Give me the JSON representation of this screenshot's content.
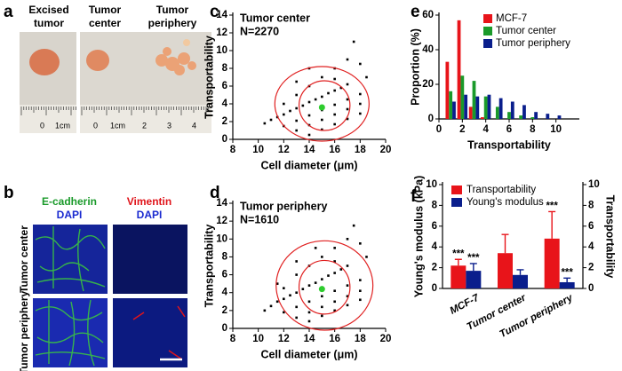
{
  "panel_labels": [
    "a",
    "b",
    "c",
    "d",
    "e",
    "f"
  ],
  "photo_a": {
    "labels": [
      [
        "Excised",
        "tumor"
      ],
      [
        "Tumor",
        "center"
      ],
      [
        "Tumor",
        "periphery"
      ]
    ],
    "ruler_labels": [
      "0",
      "1cm",
      "0",
      "1cm",
      "2",
      "3",
      "4"
    ]
  },
  "photo_b": {
    "column_labels": [
      [
        "E-cadherin",
        "DAPI"
      ],
      [
        "Vimentin",
        "DAPI"
      ]
    ],
    "row_labels": [
      "Tumor center",
      "Tumor periphery"
    ]
  },
  "chart_data": [
    {
      "type": "scatter",
      "annotation": [
        "Tumor center",
        "N=2270"
      ],
      "x": [
        10.5,
        11,
        11.5,
        12,
        12.5,
        13,
        13.5,
        14,
        14.5,
        15,
        15.5,
        16,
        16.5,
        17,
        12,
        13,
        14,
        15,
        16,
        17,
        18,
        13,
        14,
        15,
        16,
        17,
        18,
        14,
        15,
        16,
        17,
        18,
        12,
        13,
        14,
        15,
        16,
        17,
        17.5,
        16,
        18.5,
        18,
        14,
        13
      ],
      "y": [
        1.8,
        2.2,
        2.5,
        2.8,
        3.2,
        3.5,
        3.8,
        4.2,
        4.5,
        4.8,
        5.2,
        5.5,
        5.8,
        6.2,
        1.5,
        2.1,
        2.7,
        3.3,
        3.9,
        4.5,
        5.1,
        1,
        1.6,
        2.2,
        2.8,
        3.4,
        4,
        0.5,
        1.1,
        1.7,
        2.3,
        2.9,
        4,
        5,
        6,
        7,
        8,
        9,
        11,
        6.8,
        7,
        8.5,
        8,
        6.5
      ],
      "color": "#000000",
      "centroid": {
        "x": 15,
        "y": 3.6,
        "color": "#2ecc2e"
      },
      "ellipses": [
        {
          "cx": 15,
          "cy": 4,
          "rx": 3.7,
          "ry": 4.2
        },
        {
          "cx": 15.2,
          "cy": 3.8,
          "rx": 2,
          "ry": 2.8
        }
      ],
      "ellipse_color": "#e02020",
      "xlim": [
        8,
        20
      ],
      "xticks": [
        8,
        10,
        12,
        14,
        16,
        18,
        20
      ],
      "ylim": [
        0,
        14
      ],
      "yticks": [
        0,
        2,
        4,
        6,
        8,
        10,
        12,
        14
      ],
      "xlabel": "Cell diameter (μm)",
      "ylabel": "Transportability"
    },
    {
      "type": "scatter",
      "annotation": [
        "Tumor periphery",
        "N=1610"
      ],
      "x": [
        10.5,
        11,
        11.5,
        12,
        12.5,
        13,
        13.5,
        14,
        14.5,
        15,
        15.5,
        16,
        16.5,
        17,
        12,
        13,
        14,
        15,
        16,
        17,
        18,
        13,
        14,
        15,
        16,
        17,
        18,
        14,
        15,
        16,
        17,
        18,
        12,
        13,
        14,
        15,
        16,
        17,
        17.5,
        16,
        18.5,
        18,
        14.5,
        13,
        11.5
      ],
      "y": [
        2,
        2.5,
        3,
        3.3,
        3.7,
        4,
        4.4,
        4.8,
        5.1,
        5.5,
        5.9,
        6.2,
        6.6,
        7,
        1.8,
        2.4,
        3,
        3.6,
        4.2,
        4.8,
        5.4,
        1.2,
        1.8,
        2.4,
        3,
        3.6,
        4.2,
        0.8,
        1.4,
        2,
        2.6,
        3.2,
        4.5,
        6,
        7,
        8,
        9,
        10,
        11.5,
        7.5,
        8,
        9.5,
        9,
        7.5,
        5
      ],
      "color": "#000000",
      "centroid": {
        "x": 15,
        "y": 4.4,
        "color": "#2ecc2e"
      },
      "ellipses": [
        {
          "cx": 15.2,
          "cy": 4.8,
          "rx": 3.8,
          "ry": 5
        },
        {
          "cx": 15.2,
          "cy": 4.6,
          "rx": 2,
          "ry": 3
        }
      ],
      "ellipse_color": "#e02020",
      "xlim": [
        8,
        20
      ],
      "xticks": [
        8,
        10,
        12,
        14,
        16,
        18,
        20
      ],
      "ylim": [
        0,
        14
      ],
      "yticks": [
        0,
        2,
        4,
        6,
        8,
        10,
        12,
        14
      ],
      "xlabel": "Cell diameter (μm)",
      "ylabel": "Transportability"
    },
    {
      "type": "bar",
      "x": [
        1,
        2,
        3,
        4,
        5,
        6,
        7,
        8,
        9,
        10
      ],
      "series": [
        {
          "name": "MCF-7",
          "color": "#e8141a",
          "values": [
            33,
            57,
            7,
            1,
            0,
            0,
            0,
            0,
            0,
            0
          ]
        },
        {
          "name": "Tumor center",
          "color": "#1a9a2a",
          "values": [
            16,
            25,
            22,
            13,
            7,
            4,
            2,
            1,
            0,
            0
          ]
        },
        {
          "name": "Tumor periphery",
          "color": "#0a1e8c",
          "values": [
            10,
            14,
            13,
            14,
            12,
            10,
            8,
            4,
            3,
            2
          ]
        }
      ],
      "xlim": [
        0,
        12
      ],
      "xticks": [
        0,
        2,
        4,
        6,
        8,
        10
      ],
      "ylim": [
        0,
        60
      ],
      "yticks": [
        0,
        20,
        40,
        60
      ],
      "xlabel": "Transportability",
      "ylabel": "Proportion (%)",
      "legend": "upper right"
    },
    {
      "type": "errorbar",
      "categories": [
        "MCF-7",
        "Tumor center",
        "Tumor periphery"
      ],
      "series": [
        {
          "name": "Transportability",
          "color": "#e8141a",
          "axis": "y2",
          "values": [
            2.2,
            3.4,
            4.8
          ],
          "errors": [
            0.6,
            1.8,
            2.6
          ],
          "significance": [
            "***",
            null,
            "***"
          ]
        },
        {
          "name": "Young's modulus",
          "color": "#0a1e8c",
          "values": [
            1.7,
            1.3,
            0.6
          ],
          "errors": [
            0.7,
            0.5,
            0.4
          ],
          "significance": [
            "***",
            null,
            "***"
          ]
        }
      ],
      "ylim": [
        0,
        10
      ],
      "yticks": [
        0,
        2,
        4,
        6,
        8,
        10
      ],
      "y2lim": [
        0,
        10
      ],
      "y2ticks": [
        0,
        2,
        4,
        6,
        8,
        10
      ],
      "ylabel": "Young's modulus (kPa)",
      "y2label": "Transportability",
      "legend": "upper left"
    }
  ]
}
